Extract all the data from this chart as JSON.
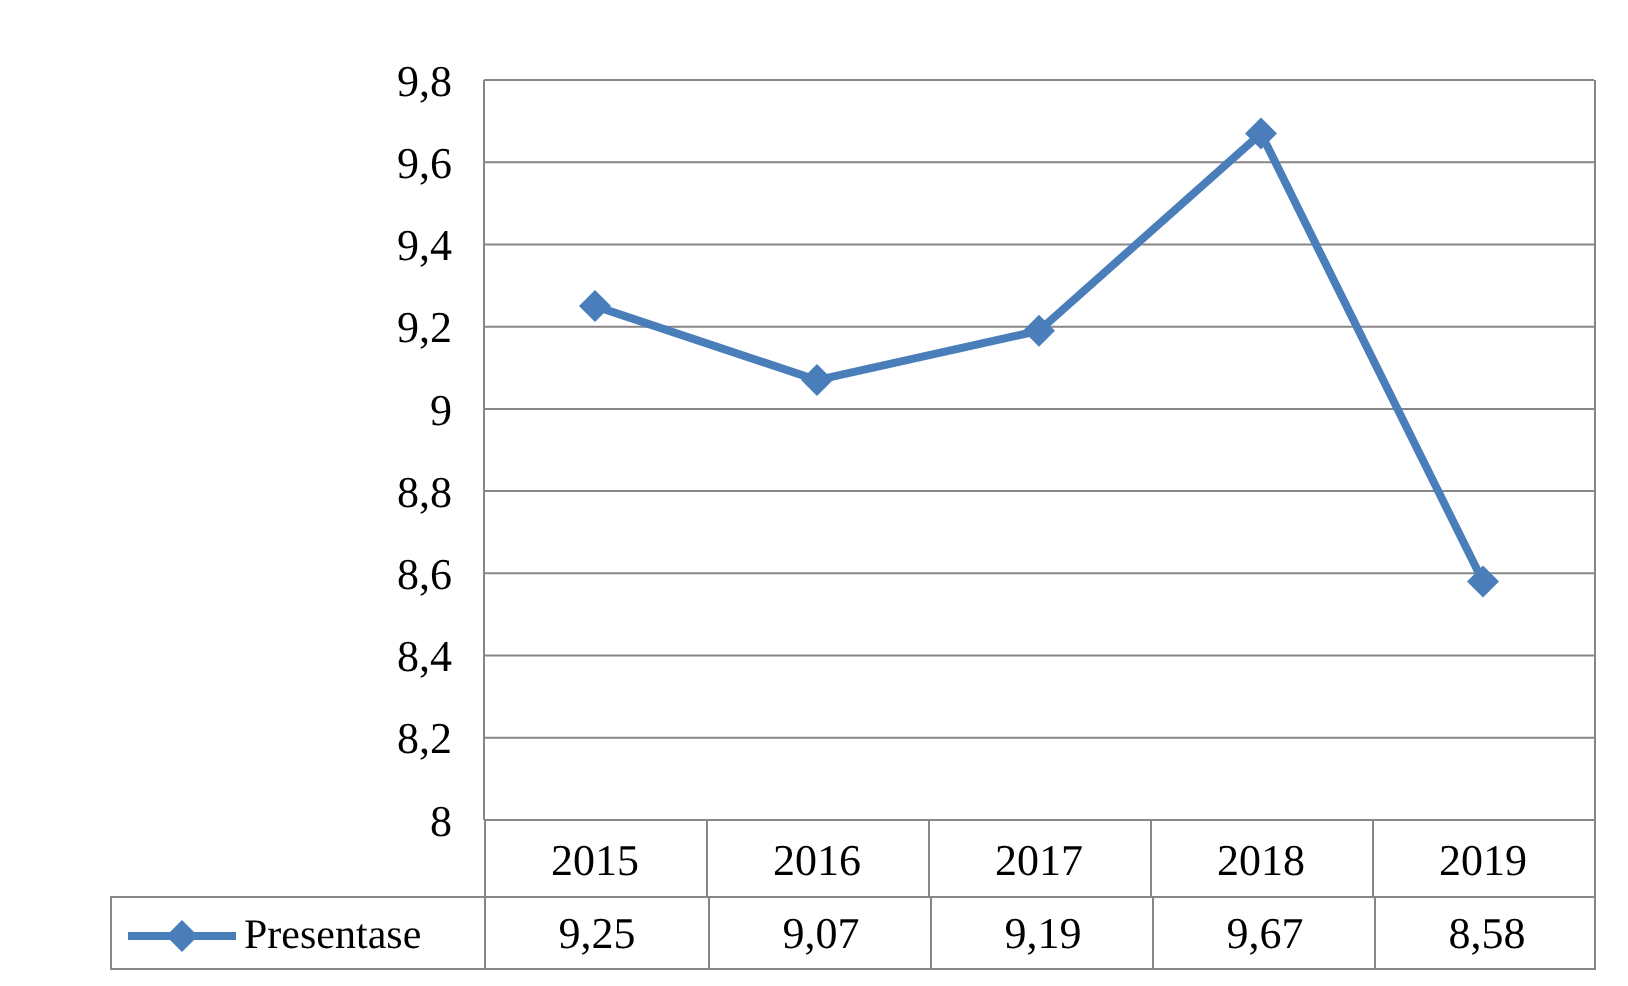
{
  "chart_data": {
    "type": "line",
    "categories": [
      "2015",
      "2016",
      "2017",
      "2018",
      "2019"
    ],
    "series": [
      {
        "name": "Presentase",
        "color": "#4a7ebb",
        "values": [
          9.25,
          9.07,
          9.19,
          9.67,
          8.58
        ],
        "value_labels": [
          "9,25",
          "9,07",
          "9,19",
          "9,67",
          "8,58"
        ]
      }
    ],
    "ylim": [
      8,
      9.8
    ],
    "yticks": [
      {
        "value": 8,
        "label": "8"
      },
      {
        "value": 8.2,
        "label": "8,2"
      },
      {
        "value": 8.4,
        "label": "8,4"
      },
      {
        "value": 8.6,
        "label": "8,6"
      },
      {
        "value": 8.8,
        "label": "8,8"
      },
      {
        "value": 9,
        "label": "9"
      },
      {
        "value": 9.2,
        "label": "9,2"
      },
      {
        "value": 9.4,
        "label": "9,4"
      },
      {
        "value": 9.6,
        "label": "9,6"
      },
      {
        "value": 9.8,
        "label": "9,8"
      }
    ],
    "grid": "y",
    "legend": "bottom left",
    "marker": "diamond",
    "line_style": "solid"
  }
}
